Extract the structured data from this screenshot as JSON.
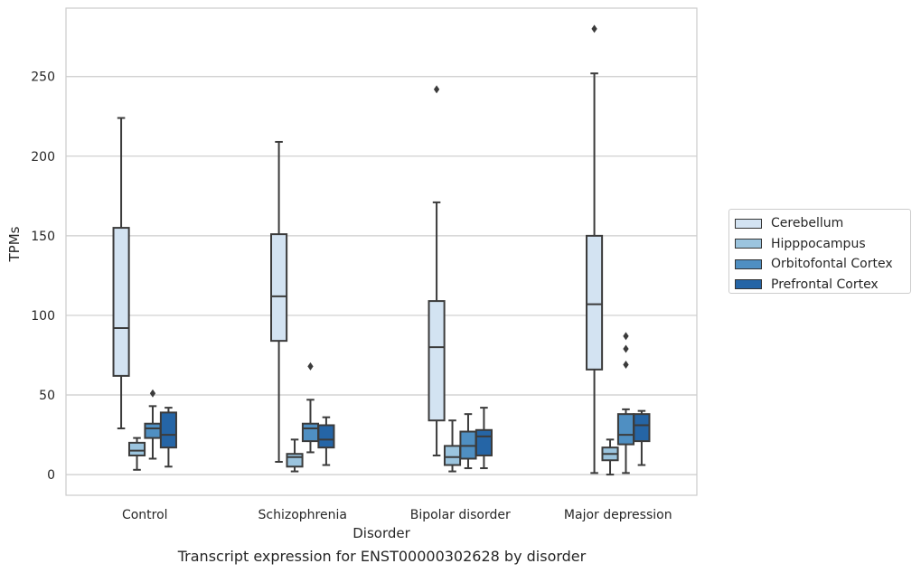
{
  "caption": "Transcript expression for ENST00000302628 by disorder",
  "chart_data": {
    "type": "box",
    "xlabel": "Disorder",
    "ylabel": "TPMs",
    "ylim": [
      -13,
      293
    ],
    "yticks": [
      0,
      50,
      100,
      150,
      200,
      250
    ],
    "categories": [
      "Control",
      "Schizophrenia",
      "Bipolar disorder",
      "Major depression"
    ],
    "legend_position": "right",
    "grid": "horizontal",
    "series": [
      {
        "name": "Cerebellum",
        "color": "#d3e3f2",
        "boxes": [
          {
            "whisker_low": 29,
            "q1": 62,
            "median": 92,
            "q3": 155,
            "whisker_high": 224,
            "outliers": []
          },
          {
            "whisker_low": 8,
            "q1": 84,
            "median": 112,
            "q3": 151,
            "whisker_high": 209,
            "outliers": []
          },
          {
            "whisker_low": 12,
            "q1": 34,
            "median": 80,
            "q3": 109,
            "whisker_high": 171,
            "outliers": [
              242
            ]
          },
          {
            "whisker_low": 1,
            "q1": 66,
            "median": 107,
            "q3": 150,
            "whisker_high": 252,
            "outliers": [
              280
            ]
          }
        ]
      },
      {
        "name": "Hipppocampus",
        "color": "#9bc4de",
        "boxes": [
          {
            "whisker_low": 3,
            "q1": 12,
            "median": 15,
            "q3": 20,
            "whisker_high": 23,
            "outliers": []
          },
          {
            "whisker_low": 2,
            "q1": 5,
            "median": 11,
            "q3": 13,
            "whisker_high": 22,
            "outliers": []
          },
          {
            "whisker_low": 2,
            "q1": 6,
            "median": 11,
            "q3": 18,
            "whisker_high": 34,
            "outliers": []
          },
          {
            "whisker_low": 0,
            "q1": 9,
            "median": 13,
            "q3": 17,
            "whisker_high": 22,
            "outliers": []
          }
        ]
      },
      {
        "name": "Orbitofontal Cortex",
        "color": "#4f8fc2",
        "boxes": [
          {
            "whisker_low": 10,
            "q1": 23,
            "median": 29,
            "q3": 32,
            "whisker_high": 43,
            "outliers": [
              51
            ]
          },
          {
            "whisker_low": 14,
            "q1": 21,
            "median": 29,
            "q3": 32,
            "whisker_high": 47,
            "outliers": [
              68
            ]
          },
          {
            "whisker_low": 4,
            "q1": 10,
            "median": 18,
            "q3": 27,
            "whisker_high": 38,
            "outliers": []
          },
          {
            "whisker_low": 1,
            "q1": 19,
            "median": 25,
            "q3": 38,
            "whisker_high": 41,
            "outliers": [
              69,
              79,
              87
            ]
          }
        ]
      },
      {
        "name": "Prefrontal Cortex",
        "color": "#2565a6",
        "boxes": [
          {
            "whisker_low": 5,
            "q1": 17,
            "median": 25,
            "q3": 39,
            "whisker_high": 42,
            "outliers": []
          },
          {
            "whisker_low": 6,
            "q1": 17,
            "median": 22,
            "q3": 31,
            "whisker_high": 36,
            "outliers": []
          },
          {
            "whisker_low": 4,
            "q1": 12,
            "median": 24,
            "q3": 28,
            "whisker_high": 42,
            "outliers": []
          },
          {
            "whisker_low": 6,
            "q1": 21,
            "median": 31,
            "q3": 38,
            "whisker_high": 40,
            "outliers": []
          }
        ]
      }
    ]
  }
}
